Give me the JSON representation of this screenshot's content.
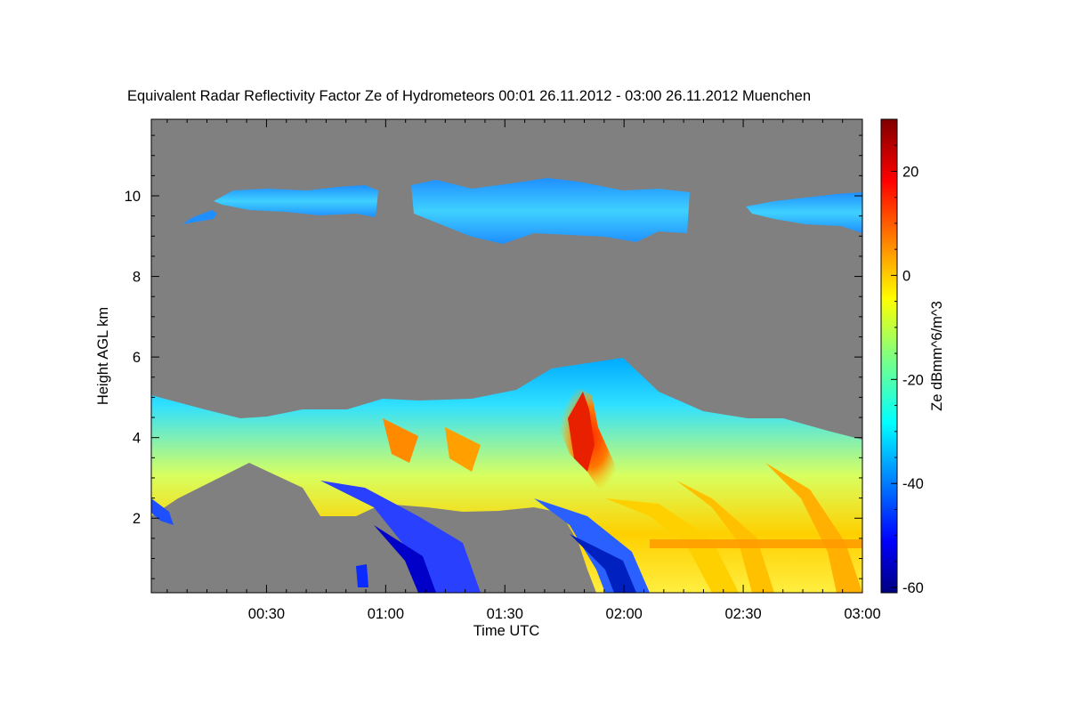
{
  "chart_data": {
    "type": "heatmap",
    "title": "Equivalent Radar Reflectivity Factor Ze of Hydrometeors   00:01 26.11.2012 - 03:00 26.11.2012 Muenchen",
    "xlabel": "Time UTC",
    "ylabel": "Height AGL km",
    "x_ticks": [
      "00:30",
      "01:00",
      "01:30",
      "02:00",
      "02:30",
      "03:00"
    ],
    "x_tick_minutes": [
      30,
      60,
      90,
      120,
      150,
      180
    ],
    "xlim_minutes": [
      1,
      180
    ],
    "y_ticks": [
      2,
      4,
      6,
      8,
      10
    ],
    "ylim": [
      0.15,
      11.9
    ],
    "colorbar": {
      "label": "Ze dBmm^6/m^3",
      "ticks": [
        20,
        0,
        -20,
        -40,
        -60
      ],
      "range": [
        -61,
        30
      ],
      "colormap": "jet"
    },
    "background_color": "#808080",
    "regions": {
      "upper_cirrus_layer_km": [
        9.0,
        10.5
      ],
      "lower_precipitation_layer_km": [
        0.2,
        6.0
      ],
      "max_reflectivity_dBZ": 22,
      "max_reflectivity_time": "01:49",
      "max_reflectivity_height_km": 4.2
    }
  }
}
